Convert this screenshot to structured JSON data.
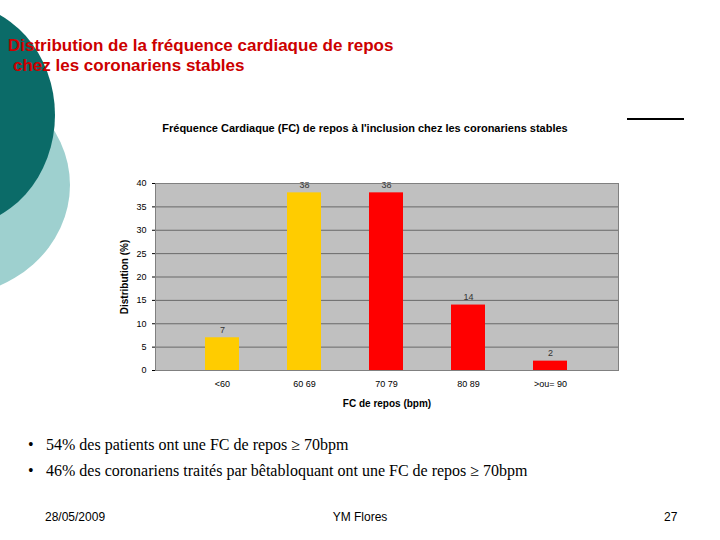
{
  "slide": {
    "title": [
      "Distribution de la fréquence cardiaque de repos",
      "chez les coronariens stables"
    ],
    "bullets": [
      "54% des patients ont une FC de repos ≥ 70bpm",
      "46% des coronariens traités par bêtabloquant ont une FC de repos ≥ 70bpm"
    ],
    "footer": {
      "date": "28/05/2009",
      "author": "YM Flores",
      "page": "27"
    }
  },
  "chart_data": {
    "type": "bar",
    "title": "Fréquence Cardiaque (FC) de repos à l'inclusion chez les coronariens stables",
    "x_label": "FC de repos (bpm)",
    "y_label": "Distribution (%)",
    "categories": [
      "<60",
      "60 69",
      "70 79",
      "80 89",
      ">ou= 90"
    ],
    "values": [
      7,
      38,
      38,
      14,
      2
    ],
    "colors": [
      "#ffcc00",
      "#ffcc00",
      "#ff0000",
      "#ff0000",
      "#ff0000"
    ],
    "ylim": [
      0,
      40
    ],
    "yticks": [
      0,
      5,
      10,
      15,
      20,
      25,
      30,
      35,
      40
    ],
    "grid": true,
    "data_labels": true
  }
}
